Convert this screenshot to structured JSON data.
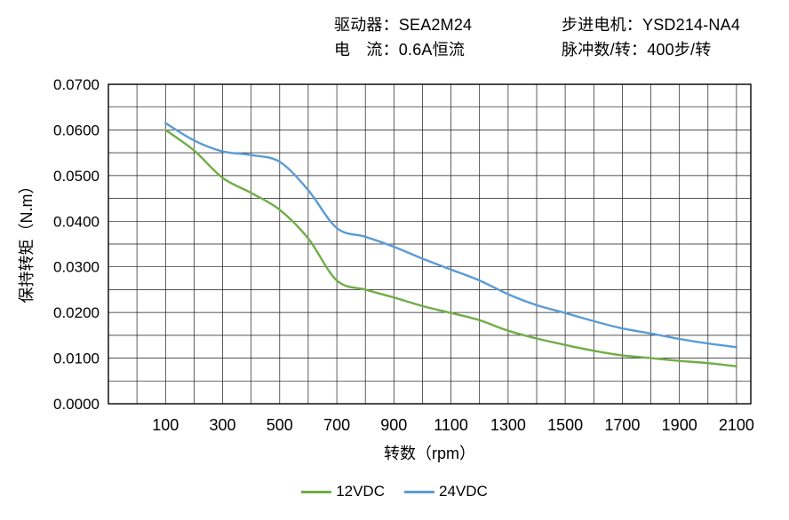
{
  "header": {
    "driver": "驱动器：SEA2M24",
    "current": "电　流：0.6A恒流",
    "motor": "步进电机：YSD214-NA4",
    "pulses": "脉冲数/转：400步/转"
  },
  "chart_data": {
    "type": "line",
    "title": "",
    "xlabel": "转数（rpm）",
    "ylabel": "保持转矩（N.m）",
    "xlim": [
      -100,
      2150
    ],
    "ylim": [
      0,
      0.07
    ],
    "grid": true,
    "grid_color": "#1a1a1a",
    "x_grid_step": 100,
    "y_grid_step": 0.005,
    "x_ticks": [
      100,
      300,
      500,
      700,
      900,
      1100,
      1300,
      1500,
      1700,
      1900,
      2100
    ],
    "y_ticks": [
      0,
      0.01,
      0.02,
      0.03,
      0.04,
      0.05,
      0.06,
      0.07
    ],
    "y_tick_labels": [
      "0.0000",
      "0.0100",
      "0.0200",
      "0.0300",
      "0.0400",
      "0.0500",
      "0.0600",
      "0.0700"
    ],
    "legend_position": "bottom",
    "x": [
      100,
      200,
      300,
      400,
      500,
      600,
      700,
      800,
      900,
      1000,
      1100,
      1200,
      1300,
      1400,
      1500,
      1600,
      1700,
      1800,
      1900,
      2000,
      2100
    ],
    "series": [
      {
        "name": "12VDC",
        "color": "#70AD47",
        "values": [
          0.06,
          0.0555,
          0.0495,
          0.0462,
          0.0425,
          0.0362,
          0.027,
          0.025,
          0.0233,
          0.0214,
          0.0199,
          0.0183,
          0.016,
          0.0143,
          0.0129,
          0.0116,
          0.0106,
          0.01,
          0.0094,
          0.0089,
          0.0082
        ]
      },
      {
        "name": "24VDC",
        "color": "#5B9BD5",
        "values": [
          0.0615,
          0.0577,
          0.0553,
          0.0545,
          0.053,
          0.0468,
          0.0385,
          0.0366,
          0.0344,
          0.0318,
          0.0294,
          0.027,
          0.024,
          0.0216,
          0.0199,
          0.0181,
          0.0165,
          0.0154,
          0.0142,
          0.0132,
          0.0124
        ]
      }
    ]
  }
}
